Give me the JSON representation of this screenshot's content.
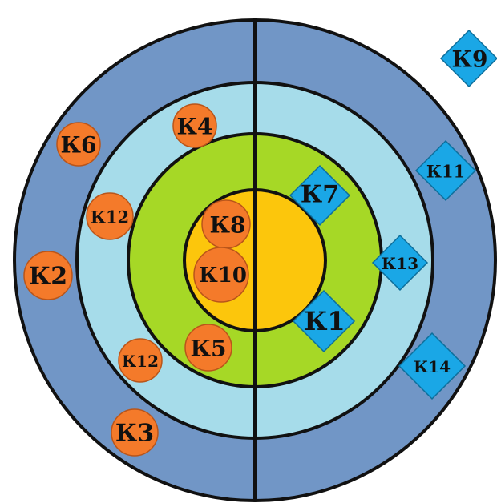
{
  "colors": {
    "ring_outer": "#7196c6",
    "ring_mid": "#a6dcea",
    "ring_inner": "#a6d826",
    "core": "#fcc60c",
    "outline": "#111111",
    "circle_marker": "#f47a2a",
    "circle_marker_edge": "#b9551a",
    "diamond_marker": "#1aa7e6",
    "diamond_marker_edge": "#0d6e9a"
  },
  "markers": {
    "circles": [
      {
        "id": "c-k6",
        "label": "К6"
      },
      {
        "id": "c-k4",
        "label": "К4"
      },
      {
        "id": "c-k12a",
        "label": "К12"
      },
      {
        "id": "c-k8",
        "label": "К8"
      },
      {
        "id": "c-k2",
        "label": "К2"
      },
      {
        "id": "c-k10",
        "label": "К10"
      },
      {
        "id": "c-k5",
        "label": "К5"
      },
      {
        "id": "c-k12b",
        "label": "К12"
      },
      {
        "id": "c-k3",
        "label": "К3"
      }
    ],
    "diamonds": [
      {
        "id": "d-k9",
        "label": "К9"
      },
      {
        "id": "d-k11",
        "label": "К11"
      },
      {
        "id": "d-k7",
        "label": "К7"
      },
      {
        "id": "d-k13",
        "label": "К13"
      },
      {
        "id": "d-k1",
        "label": "К1"
      },
      {
        "id": "d-k14",
        "label": "К14"
      }
    ]
  }
}
